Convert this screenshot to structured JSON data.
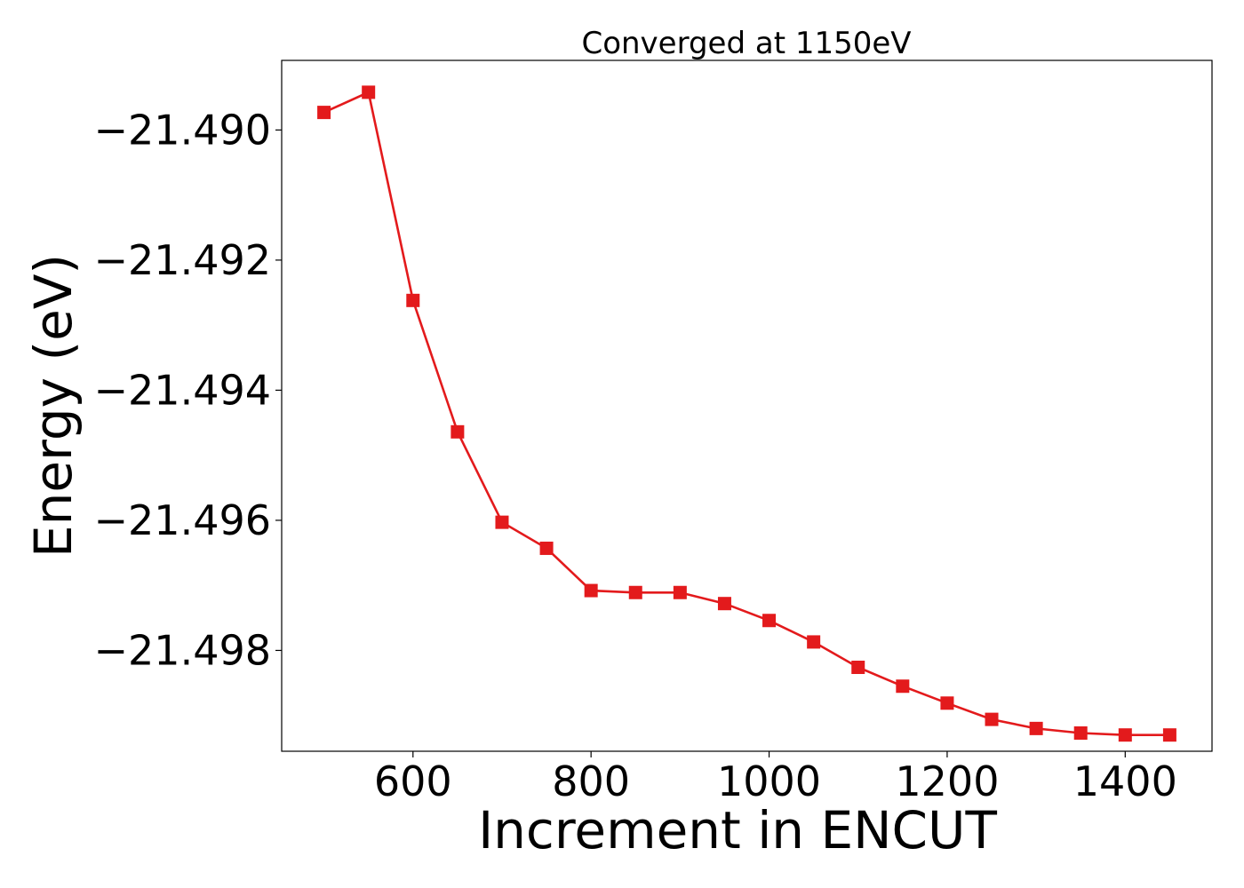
{
  "chart_data": {
    "type": "line",
    "title": "Converged at 1150eV",
    "xlabel": "Increment in ENCUT",
    "ylabel": "Energy (eV)",
    "xlim": [
      452.5,
      1497.5
    ],
    "ylim": [
      -21.49955,
      -21.48893
    ],
    "xticks": [
      600,
      800,
      1000,
      1200,
      1400
    ],
    "xtick_labels": [
      "600",
      "800",
      "1000",
      "1200",
      "1400"
    ],
    "yticks": [
      -21.49,
      -21.492,
      -21.494,
      -21.496,
      -21.498
    ],
    "ytick_labels": [
      "−21.490",
      "−21.492",
      "−21.494",
      "−21.496",
      "−21.498"
    ],
    "grid": false,
    "legend": "none",
    "series": [
      {
        "color": "#e31a1c",
        "marker": "square",
        "x": [
          500,
          550,
          600,
          650,
          700,
          750,
          800,
          850,
          900,
          950,
          1000,
          1050,
          1100,
          1150,
          1200,
          1250,
          1300,
          1350,
          1400,
          1450
        ],
        "y": [
          -21.48973,
          -21.48942,
          -21.49262,
          -21.49464,
          -21.49603,
          -21.49643,
          -21.49708,
          -21.49711,
          -21.49711,
          -21.49728,
          -21.49754,
          -21.49787,
          -21.49826,
          -21.49855,
          -21.49881,
          -21.49906,
          -21.4992,
          -21.49927,
          -21.4993,
          -21.4993
        ]
      }
    ]
  }
}
